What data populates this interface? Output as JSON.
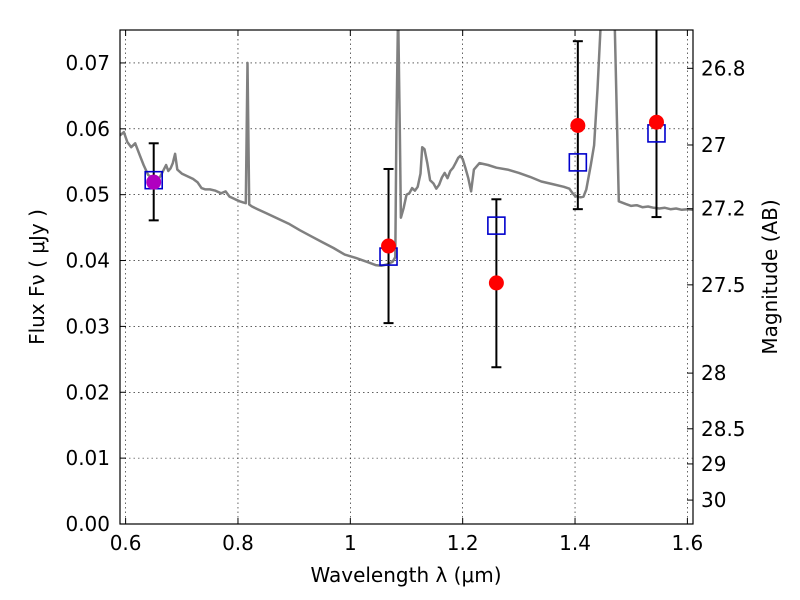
{
  "chart_data": {
    "type": "scatter",
    "xlabel": "Wavelength  λ (μm)",
    "ylabel": "Flux  Fν  ( μJy )",
    "y2label": "Magnitude (AB)",
    "xlim": [
      0.59,
      1.61
    ],
    "ylim": [
      0.0,
      0.075
    ],
    "grid": true,
    "x_ticks": [
      {
        "value": 0.6,
        "label": "0.6"
      },
      {
        "value": 0.8,
        "label": "0.8"
      },
      {
        "value": 1.0,
        "label": "1"
      },
      {
        "value": 1.2,
        "label": "1.2"
      },
      {
        "value": 1.4,
        "label": "1.4"
      },
      {
        "value": 1.6,
        "label": "1.6"
      }
    ],
    "y_ticks": [
      {
        "value": 0.0,
        "label": "0.00"
      },
      {
        "value": 0.01,
        "label": "0.01"
      },
      {
        "value": 0.02,
        "label": "0.02"
      },
      {
        "value": 0.03,
        "label": "0.03"
      },
      {
        "value": 0.04,
        "label": "0.04"
      },
      {
        "value": 0.05,
        "label": "0.05"
      },
      {
        "value": 0.06,
        "label": "0.06"
      },
      {
        "value": 0.07,
        "label": "0.07"
      }
    ],
    "y2_ticks": [
      {
        "mag": 26.8,
        "label": "26.8"
      },
      {
        "mag": 27.0,
        "label": "27"
      },
      {
        "mag": 27.2,
        "label": "27.2"
      },
      {
        "mag": 27.5,
        "label": "27.5"
      },
      {
        "mag": 28.0,
        "label": "28"
      },
      {
        "mag": 28.5,
        "label": "28.5"
      },
      {
        "mag": 29.0,
        "label": "29"
      },
      {
        "mag": 30.0,
        "label": "30"
      }
    ],
    "spectrum": {
      "color": "#808080",
      "points": [
        [
          0.59,
          0.059
        ],
        [
          0.597,
          0.0595
        ],
        [
          0.603,
          0.058
        ],
        [
          0.61,
          0.0572
        ],
        [
          0.617,
          0.0578
        ],
        [
          0.625,
          0.056
        ],
        [
          0.632,
          0.0545
        ],
        [
          0.64,
          0.053
        ],
        [
          0.648,
          0.0525
        ],
        [
          0.655,
          0.052
        ],
        [
          0.662,
          0.0528
        ],
        [
          0.668,
          0.0538
        ],
        [
          0.672,
          0.0545
        ],
        [
          0.676,
          0.0536
        ],
        [
          0.68,
          0.054
        ],
        [
          0.684,
          0.0548
        ],
        [
          0.688,
          0.0562
        ],
        [
          0.692,
          0.0538
        ],
        [
          0.7,
          0.0532
        ],
        [
          0.71,
          0.0528
        ],
        [
          0.72,
          0.0524
        ],
        [
          0.728,
          0.0519
        ],
        [
          0.735,
          0.051
        ],
        [
          0.742,
          0.0508
        ],
        [
          0.75,
          0.0508
        ],
        [
          0.76,
          0.0506
        ],
        [
          0.77,
          0.0502
        ],
        [
          0.778,
          0.0505
        ],
        [
          0.785,
          0.0497
        ],
        [
          0.795,
          0.0493
        ],
        [
          0.803,
          0.049
        ],
        [
          0.81,
          0.0488
        ],
        [
          0.814,
          0.0487
        ],
        [
          0.817,
          0.07
        ],
        [
          0.82,
          0.0485
        ],
        [
          0.825,
          0.0482
        ],
        [
          0.835,
          0.0478
        ],
        [
          0.85,
          0.0472
        ],
        [
          0.87,
          0.0464
        ],
        [
          0.89,
          0.0456
        ],
        [
          0.91,
          0.0446
        ],
        [
          0.93,
          0.0437
        ],
        [
          0.95,
          0.0428
        ],
        [
          0.97,
          0.0419
        ],
        [
          0.99,
          0.0409
        ],
        [
          1.01,
          0.0404
        ],
        [
          1.03,
          0.0398
        ],
        [
          1.045,
          0.0393
        ],
        [
          1.055,
          0.0392
        ],
        [
          1.065,
          0.0394
        ],
        [
          1.07,
          0.0396
        ],
        [
          1.075,
          0.0398
        ],
        [
          1.08,
          0.0405
        ],
        [
          1.082,
          0.06
        ],
        [
          1.085,
          0.078
        ],
        [
          1.088,
          0.06
        ],
        [
          1.09,
          0.0465
        ],
        [
          1.095,
          0.048
        ],
        [
          1.1,
          0.05
        ],
        [
          1.105,
          0.0502
        ],
        [
          1.11,
          0.051
        ],
        [
          1.115,
          0.0506
        ],
        [
          1.12,
          0.0512
        ],
        [
          1.125,
          0.0532
        ],
        [
          1.128,
          0.0572
        ],
        [
          1.132,
          0.0569
        ],
        [
          1.137,
          0.0548
        ],
        [
          1.142,
          0.0522
        ],
        [
          1.148,
          0.0517
        ],
        [
          1.153,
          0.0509
        ],
        [
          1.158,
          0.0515
        ],
        [
          1.163,
          0.0526
        ],
        [
          1.168,
          0.0533
        ],
        [
          1.173,
          0.0525
        ],
        [
          1.178,
          0.0536
        ],
        [
          1.183,
          0.0541
        ],
        [
          1.188,
          0.0549
        ],
        [
          1.192,
          0.0556
        ],
        [
          1.196,
          0.0559
        ],
        [
          1.2,
          0.0554
        ],
        [
          1.205,
          0.054
        ],
        [
          1.21,
          0.0525
        ],
        [
          1.215,
          0.0505
        ],
        [
          1.22,
          0.0538
        ],
        [
          1.23,
          0.0548
        ],
        [
          1.245,
          0.0545
        ],
        [
          1.26,
          0.0541
        ],
        [
          1.28,
          0.0538
        ],
        [
          1.3,
          0.0533
        ],
        [
          1.32,
          0.0527
        ],
        [
          1.34,
          0.052
        ],
        [
          1.36,
          0.0516
        ],
        [
          1.38,
          0.0512
        ],
        [
          1.39,
          0.0509
        ],
        [
          1.395,
          0.0503
        ],
        [
          1.4,
          0.0498
        ],
        [
          1.41,
          0.0496
        ],
        [
          1.415,
          0.0497
        ],
        [
          1.42,
          0.0508
        ],
        [
          1.428,
          0.0545
        ],
        [
          1.434,
          0.0575
        ],
        [
          1.44,
          0.066
        ],
        [
          1.447,
          0.078
        ],
        [
          1.47,
          0.078
        ],
        [
          1.478,
          0.049
        ],
        [
          1.49,
          0.0486
        ],
        [
          1.5,
          0.0483
        ],
        [
          1.51,
          0.0484
        ],
        [
          1.52,
          0.0481
        ],
        [
          1.53,
          0.0482
        ],
        [
          1.54,
          0.048
        ],
        [
          1.55,
          0.0479
        ],
        [
          1.56,
          0.048
        ],
        [
          1.57,
          0.0478
        ],
        [
          1.58,
          0.0479
        ],
        [
          1.59,
          0.0477
        ],
        [
          1.6,
          0.0478
        ],
        [
          1.61,
          0.0477
        ]
      ]
    },
    "observed": {
      "marker": "circle",
      "color": "#ff0000",
      "points": [
        {
          "x": 0.65,
          "y": 0.0519,
          "yerr_low": 0.0461,
          "yerr_high": 0.0578
        },
        {
          "x": 1.068,
          "y": 0.0422,
          "yerr_low": 0.0305,
          "yerr_high": 0.0539
        },
        {
          "x": 1.26,
          "y": 0.0366,
          "yerr_low": 0.0238,
          "yerr_high": 0.0493
        },
        {
          "x": 1.405,
          "y": 0.0605,
          "yerr_low": 0.0478,
          "yerr_high": 0.0733
        },
        {
          "x": 1.545,
          "y": 0.061,
          "yerr_low": 0.0466,
          "yerr_high": 0.0755
        }
      ]
    },
    "model": {
      "marker": "square",
      "color": "#0000cc",
      "points": [
        {
          "x": 0.65,
          "y": 0.0522
        },
        {
          "x": 1.068,
          "y": 0.0406
        },
        {
          "x": 1.26,
          "y": 0.0453
        },
        {
          "x": 1.405,
          "y": 0.0549
        },
        {
          "x": 1.545,
          "y": 0.0593
        }
      ]
    },
    "overlap_marker_color": "#b000c0"
  }
}
